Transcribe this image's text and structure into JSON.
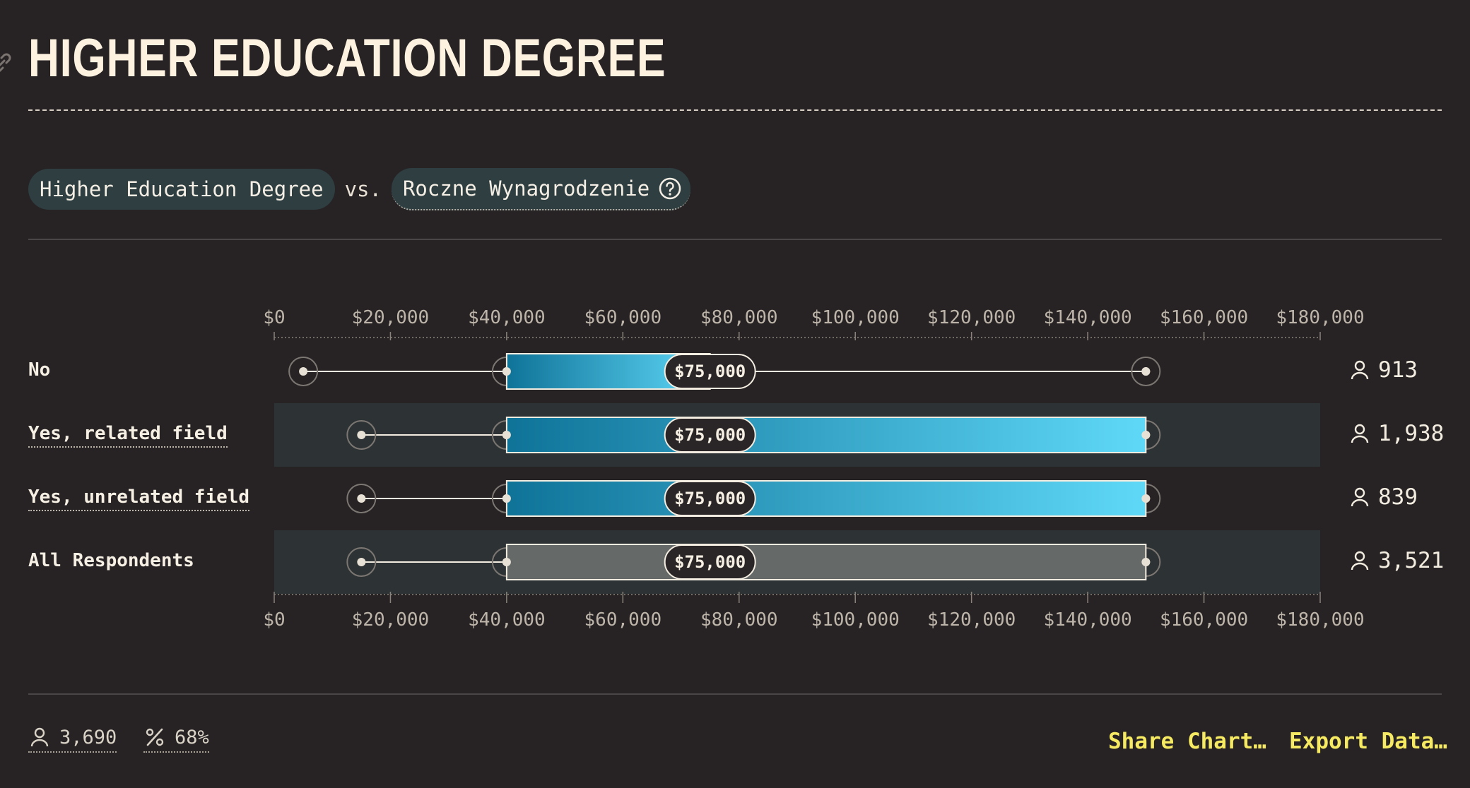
{
  "header": {
    "title": "HIGHER EDUCATION DEGREE"
  },
  "selector": {
    "variable_a": "Higher Education Degree",
    "vs_label": "vs.",
    "variable_b": "Roczne Wynagrodzenie"
  },
  "chart_data": {
    "type": "boxplot",
    "title": "HIGHER EDUCATION DEGREE",
    "xlim": [
      0,
      180000
    ],
    "tick_values": [
      0,
      20000,
      40000,
      60000,
      80000,
      100000,
      120000,
      140000,
      160000,
      180000
    ],
    "tick_labels": [
      "$0",
      "$20,000",
      "$40,000",
      "$60,000",
      "$80,000",
      "$100,000",
      "$120,000",
      "$140,000",
      "$160,000",
      "$180,000"
    ],
    "grid": false,
    "rows": [
      {
        "label": "No",
        "whisker_low": 5000,
        "q1": 40000,
        "median": 75000,
        "q3": 75000,
        "whisker_high": 150000,
        "median_label": "$75,000",
        "count": "913",
        "style": "color"
      },
      {
        "label": "Yes, related field",
        "whisker_low": 15000,
        "q1": 40000,
        "median": 75000,
        "q3": 150000,
        "whisker_high": 150000,
        "median_label": "$75,000",
        "count": "1,938",
        "style": "color"
      },
      {
        "label": "Yes, unrelated field",
        "whisker_low": 15000,
        "q1": 40000,
        "median": 75000,
        "q3": 150000,
        "whisker_high": 150000,
        "median_label": "$75,000",
        "count": "839",
        "style": "color"
      },
      {
        "label": "All Respondents",
        "whisker_low": 15000,
        "q1": 40000,
        "median": 75000,
        "q3": 150000,
        "whisker_high": 150000,
        "median_label": "$75,000",
        "count": "3,521",
        "style": "gray"
      }
    ]
  },
  "footer": {
    "respondents": "3,690",
    "percentage": "68%",
    "share_label": "Share Chart…",
    "export_label": "Export Data…"
  },
  "colors": {
    "background": "#272324",
    "row_band": "#2d3335",
    "bar_start": "#0f7398",
    "bar_end": "#5fd8f7",
    "gray_bar": "#656a69",
    "accent_yellow": "#f6ea62",
    "text": "#f3ece0"
  }
}
